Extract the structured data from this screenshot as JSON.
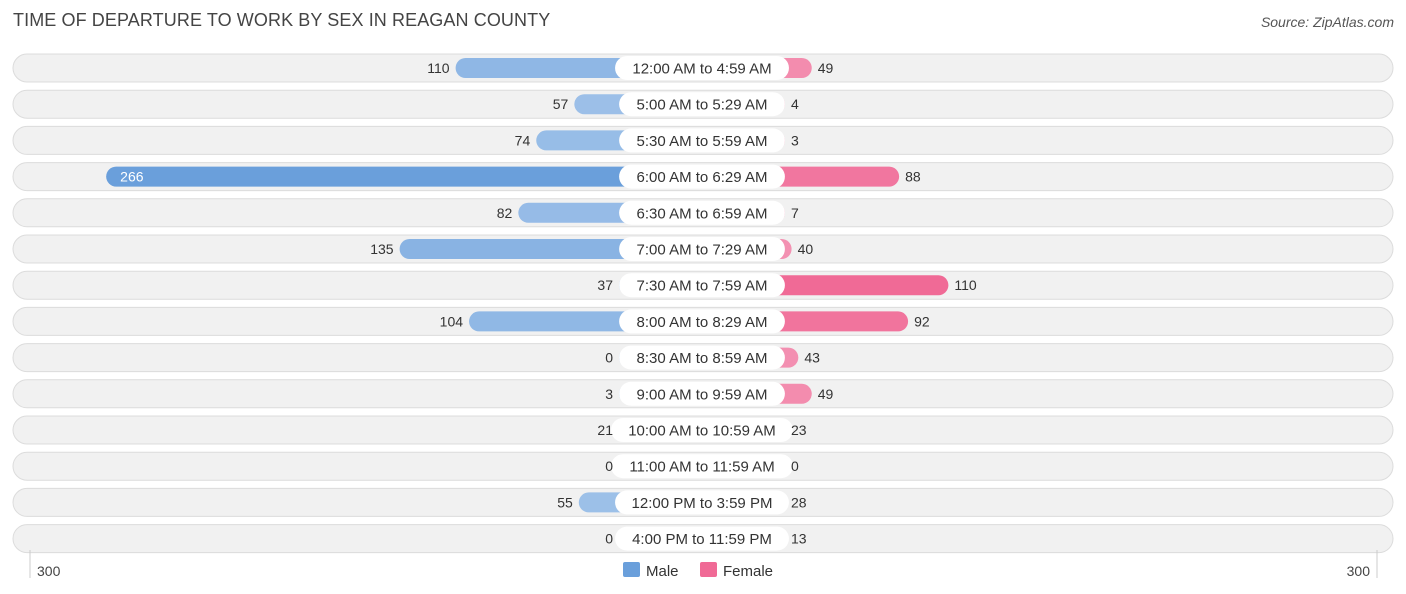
{
  "header": {
    "title": "TIME OF DEPARTURE TO WORK BY SEX IN REAGAN COUNTY",
    "source": "Source: ZipAtlas.com"
  },
  "colors": {
    "male_strong": "#6a9fdb",
    "male_light": "#a9c8ec",
    "female_strong": "#f06a96",
    "female_light": "#f5a7c2"
  },
  "chart_data": {
    "type": "bar",
    "orientation": "horizontal-diverging",
    "categories": [
      "12:00 AM to 4:59 AM",
      "5:00 AM to 5:29 AM",
      "5:30 AM to 5:59 AM",
      "6:00 AM to 6:29 AM",
      "6:30 AM to 6:59 AM",
      "7:00 AM to 7:29 AM",
      "7:30 AM to 7:59 AM",
      "8:00 AM to 8:29 AM",
      "8:30 AM to 8:59 AM",
      "9:00 AM to 9:59 AM",
      "10:00 AM to 10:59 AM",
      "11:00 AM to 11:59 AM",
      "12:00 PM to 3:59 PM",
      "4:00 PM to 11:59 PM"
    ],
    "series": [
      {
        "name": "Male",
        "values": [
          110,
          57,
          74,
          266,
          82,
          135,
          37,
          104,
          0,
          3,
          21,
          0,
          55,
          0
        ]
      },
      {
        "name": "Female",
        "values": [
          49,
          4,
          3,
          88,
          7,
          40,
          110,
          92,
          43,
          49,
          23,
          0,
          28,
          13
        ]
      }
    ],
    "axis": {
      "min_label": "300",
      "max_label": "300",
      "range": [
        -300,
        300
      ]
    },
    "legend": {
      "position": "bottom-center",
      "items": [
        "Male",
        "Female"
      ]
    }
  }
}
